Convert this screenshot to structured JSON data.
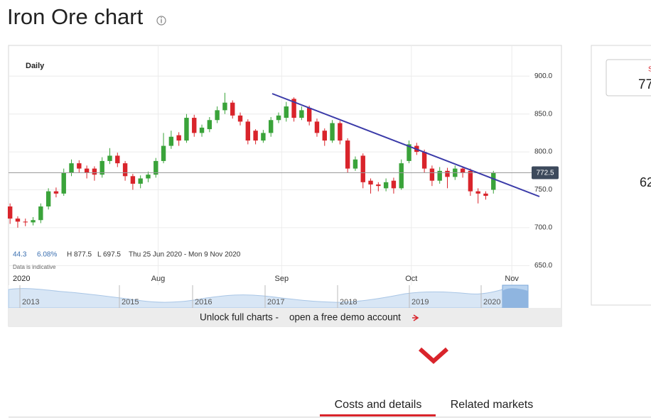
{
  "header": {
    "title": "Iron Ore chart"
  },
  "chart_data": {
    "type": "candlestick",
    "title": "Daily",
    "x": [
      0,
      1,
      2,
      3,
      4,
      5,
      6,
      7,
      8,
      9,
      10,
      11,
      12,
      13,
      14,
      15,
      16,
      17,
      18,
      19,
      20,
      21,
      22,
      23,
      24,
      25,
      26,
      27,
      28,
      29,
      30,
      31,
      32,
      33,
      34,
      35,
      36,
      37,
      38,
      39,
      40,
      41,
      42,
      43,
      44,
      45,
      46,
      47,
      48,
      49,
      50,
      51,
      52,
      53,
      54,
      55,
      56,
      57,
      58,
      59,
      60,
      61,
      62,
      63
    ],
    "open": [
      728,
      712,
      708,
      707,
      710,
      728,
      748,
      745,
      772,
      785,
      778,
      778,
      770,
      788,
      795,
      785,
      768,
      758,
      765,
      770,
      788,
      808,
      822,
      815,
      845,
      825,
      830,
      842,
      855,
      865,
      848,
      840,
      828,
      815,
      825,
      842,
      845,
      870,
      845,
      858,
      840,
      828,
      815,
      838,
      815,
      778,
      795,
      762,
      757,
      752,
      762,
      752,
      788,
      808,
      800,
      778,
      762,
      775,
      767,
      778,
      775,
      748,
      745,
      750
    ],
    "high": [
      732,
      715,
      712,
      714,
      732,
      752,
      753,
      778,
      790,
      789,
      782,
      781,
      793,
      805,
      799,
      788,
      771,
      769,
      774,
      792,
      825,
      828,
      826,
      850,
      849,
      836,
      846,
      860,
      878,
      868,
      852,
      843,
      830,
      829,
      846,
      852,
      866,
      872,
      860,
      861,
      844,
      831,
      842,
      841,
      818,
      794,
      798,
      765,
      760,
      765,
      766,
      790,
      815,
      812,
      803,
      782,
      780,
      779,
      782,
      781,
      778,
      752,
      748,
      775
    ],
    "low": [
      705,
      700,
      702,
      703,
      706,
      724,
      740,
      742,
      768,
      772,
      765,
      762,
      766,
      784,
      780,
      762,
      750,
      752,
      760,
      766,
      785,
      804,
      808,
      812,
      820,
      820,
      826,
      838,
      850,
      844,
      835,
      810,
      810,
      812,
      820,
      838,
      840,
      840,
      842,
      835,
      820,
      808,
      812,
      810,
      772,
      775,
      752,
      745,
      748,
      748,
      745,
      750,
      785,
      796,
      772,
      755,
      758,
      752,
      763,
      766,
      742,
      732,
      737,
      745
    ],
    "close": [
      712,
      708,
      707,
      710,
      728,
      748,
      745,
      772,
      785,
      778,
      772,
      770,
      788,
      795,
      785,
      768,
      758,
      765,
      770,
      788,
      808,
      820,
      815,
      845,
      825,
      832,
      842,
      855,
      865,
      848,
      840,
      815,
      815,
      825,
      842,
      848,
      860,
      845,
      855,
      840,
      825,
      815,
      838,
      815,
      778,
      790,
      760,
      757,
      755,
      760,
      752,
      785,
      810,
      800,
      778,
      762,
      775,
      767,
      778,
      772,
      748,
      745,
      742,
      772
    ],
    "up_color": "#3aa33a",
    "down_color": "#d9242b",
    "xlim": [
      -0.2,
      67.7
    ],
    "ylim": [
      640,
      925
    ],
    "year_label": "2020",
    "xticks": [
      {
        "value": 19.3,
        "label": "Aug"
      },
      {
        "value": 35.4,
        "label": "Sep"
      },
      {
        "value": 52.3,
        "label": "Oct"
      },
      {
        "value": 65.4,
        "label": "Nov"
      }
    ],
    "yticks": [
      {
        "value": 900,
        "label": "900.0"
      },
      {
        "value": 850,
        "label": "850.0"
      },
      {
        "value": 800,
        "label": "800.0"
      },
      {
        "value": 750,
        "label": "750.0"
      },
      {
        "value": 700,
        "label": "700.0"
      },
      {
        "value": 650,
        "label": "650.0"
      }
    ],
    "grid": true,
    "current_price": 772.5,
    "annotations": [
      "44.3",
      "6.08%",
      "H 877.5",
      "L 697.5",
      "Thu 25 Jun 2020 - Mon 9 Nov 2020",
      "Data is indicative"
    ]
  },
  "navigator": {
    "years": [
      "2013",
      "2015",
      "2016",
      "2017",
      "2018",
      "2019",
      "2020"
    ]
  },
  "unlock": {
    "text": "Unlock full charts - ",
    "link": "open a free demo account"
  },
  "side_panel": {
    "label": "S",
    "value": "77",
    "value2": "62"
  },
  "tabs": [
    "Costs and details",
    "Related markets"
  ]
}
